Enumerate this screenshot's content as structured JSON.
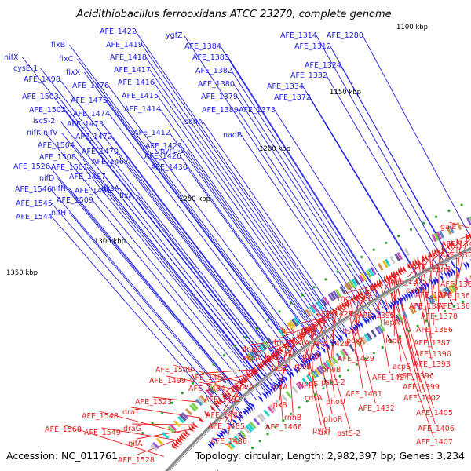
{
  "title": "Acidithiobacillus ferrooxidans ATCC 23270, complete genome",
  "footer": {
    "accession": "Accession: NC_011761",
    "stats": "Topology: circular; Length: 2,982,397 bp; Genes: 3,234"
  },
  "colors": {
    "forward_strand": "#1f1fe6",
    "reverse_strand": "#e61f1f",
    "backbone": "#8a8a8a",
    "tick_marks": "#2e9e2e"
  },
  "kbp_labels": [
    "1100 kbp",
    "1150 kbp",
    "1200 kbp",
    "1250 kbp",
    "1300 kbp",
    "1350 kbp"
  ],
  "forward_genes": [
    "nifX",
    "cysE-1",
    "AFE_1498",
    "AFE_1503",
    "AFE_1502",
    "iscS-2",
    "nifK",
    "AFE_1504",
    "AFE_1508",
    "AFE_1526",
    "nifD",
    "AFE_1546",
    "AFE_1545",
    "AFE_1544",
    "fixB",
    "fixC",
    "fixX",
    "AFE_1476",
    "AFE_1475",
    "AFE_1474",
    "AFE_1473",
    "AFE_1472",
    "AFE_1470",
    "AFE_1467",
    "nifV",
    "AFE_1501",
    "nifN",
    "AFE_1497",
    "AFE_1496",
    "AFE_1509",
    "nifH",
    "dksA",
    "fixA",
    "AFE_1422",
    "AFE_1419",
    "AFE_1418",
    "AFE_1417",
    "AFE_1416",
    "AFE_1415",
    "AFE_1414",
    "AFE_1412",
    "AFE_1423",
    "AFE_1426",
    "AFE_1430",
    "pyrC-2",
    "ygfZ",
    "AFE_1384",
    "AFE_1383",
    "AFE_1382",
    "AFE_1380",
    "AFE_1379",
    "AFE_1389",
    "AFE_1373",
    "sohA",
    "nadB",
    "AFE_1314",
    "AFE_1312",
    "AFE_1280",
    "AFE_1324",
    "AFE_1332",
    "AFE_1334",
    "AFE_1372"
  ],
  "reverse_genes": [
    "galE",
    "AFE_1348",
    "AFE_1351",
    "asnB",
    "AFE_1371",
    "AFE_1360",
    "AFE_1365",
    "AFE_1367",
    "AFE_1378",
    "AFE_1375",
    "cvdD",
    "AFE_1376",
    "AFE_1381",
    "AFE_1386",
    "rnc",
    "rpoE",
    "era",
    "AFE_1395",
    "lepA",
    "AFE_1387",
    "lepB",
    "AFE_1390",
    "AFE_1393",
    "hslO",
    "pdxJ",
    "acpS",
    "AFE_1396",
    "AFE_1399",
    "AFE_1402",
    "AFE_1405",
    "AFE_1406",
    "AFE_1407",
    "ppx",
    "rhlE",
    "frr",
    "pstA",
    "tsf",
    "pstB",
    "AFE_1427",
    "AFE_1428",
    "AFE_1429",
    "AFE_1424",
    "AFE_1431",
    "AFE_1432",
    "rpsB",
    "phoB",
    "pstC-2",
    "phoU",
    "phoR",
    "pyrH",
    "pstS-2",
    "dxr",
    "uppS",
    "cdsA",
    "lpxA",
    "fabZ",
    "lpxD",
    "accA",
    "dnaE",
    "tilS",
    "lpxB",
    "rnhB",
    "AFE_1466",
    "speA",
    "AFE_1481",
    "AFE_1484",
    "AFE_1482",
    "AFE_1483",
    "AFE_1485",
    "AFE_1486",
    "AFE_1500",
    "AFE_1499",
    "AFE_1523",
    "AFE_1548",
    "AFE_1549",
    "draT",
    "draG",
    "nifA",
    "AFE_1528",
    "AFE_1568"
  ]
}
